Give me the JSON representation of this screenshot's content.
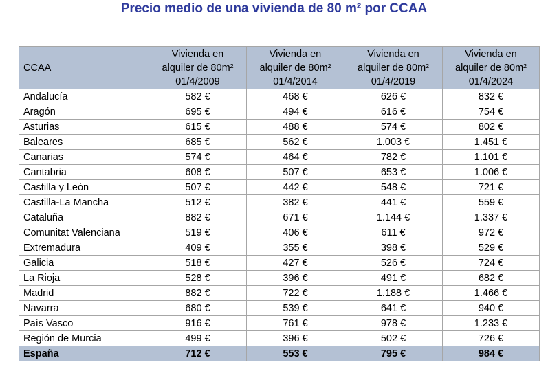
{
  "header": {
    "title": "Precio medio de una vivienda de 80 m² por CCAA"
  },
  "table": {
    "columns": [
      [
        "CCAA"
      ],
      [
        "Vivienda en",
        "alquiler de 80m²",
        "01/4/2009"
      ],
      [
        "Vivienda en",
        "alquiler de 80m²",
        "01/4/2014"
      ],
      [
        "Vivienda en",
        "alquiler de 80m²",
        "01/4/2019"
      ],
      [
        "Vivienda en",
        "alquiler de 80m²",
        "01/4/2024"
      ]
    ],
    "rows": [
      [
        "Andalucía",
        "582 €",
        "468 €",
        "626 €",
        "832 €"
      ],
      [
        "Aragón",
        "695 €",
        "494 €",
        "616 €",
        "754 €"
      ],
      [
        "Asturias",
        "615 €",
        "488 €",
        "574 €",
        "802 €"
      ],
      [
        "Baleares",
        "685 €",
        "562 €",
        "1.003 €",
        "1.451 €"
      ],
      [
        "Canarias",
        "574 €",
        "464 €",
        "782 €",
        "1.101 €"
      ],
      [
        "Cantabria",
        "608 €",
        "507 €",
        "653 €",
        "1.006 €"
      ],
      [
        "Castilla y León",
        "507 €",
        "442 €",
        "548 €",
        "721 €"
      ],
      [
        "Castilla-La Mancha",
        "512 €",
        "382 €",
        "441 €",
        "559 €"
      ],
      [
        "Cataluña",
        "882 €",
        "671 €",
        "1.144 €",
        "1.337 €"
      ],
      [
        "Comunitat Valenciana",
        "519 €",
        "406 €",
        "611 €",
        "972 €"
      ],
      [
        "Extremadura",
        "409 €",
        "355 €",
        "398 €",
        "529 €"
      ],
      [
        "Galicia",
        "518 €",
        "427 €",
        "526 €",
        "724 €"
      ],
      [
        "La Rioja",
        "528 €",
        "396 €",
        "491 €",
        "682 €"
      ],
      [
        "Madrid",
        "882 €",
        "722 €",
        "1.188 €",
        "1.466 €"
      ],
      [
        "Navarra",
        "680 €",
        "539 €",
        "641 €",
        "940 €"
      ],
      [
        "País Vasco",
        "916 €",
        "761 €",
        "978 €",
        "1.233 €"
      ],
      [
        "Región de Murcia",
        "499 €",
        "396 €",
        "502 €",
        "726 €"
      ]
    ],
    "total": [
      "España",
      "712 €",
      "553 €",
      "795 €",
      "984 €"
    ]
  }
}
